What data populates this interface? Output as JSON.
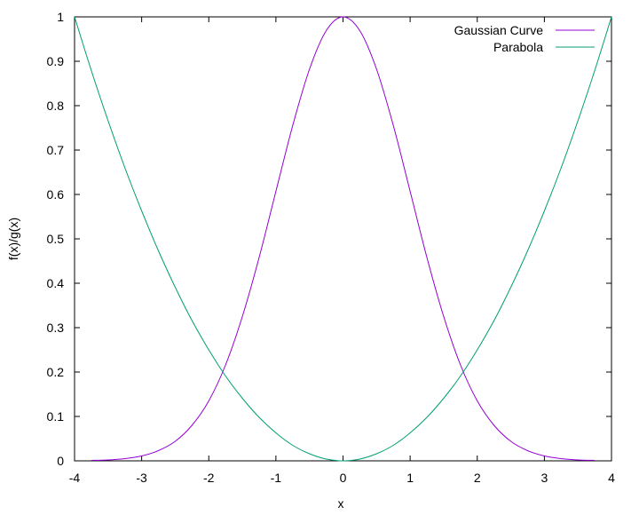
{
  "chart_data": {
    "type": "line",
    "xlabel": "x",
    "ylabel": "f(x)/g(x)",
    "xlim": [
      -4,
      4
    ],
    "ylim": [
      0,
      1
    ],
    "xticks": [
      -4,
      -3,
      -2,
      -1,
      0,
      1,
      2,
      3,
      4
    ],
    "yticks": [
      0,
      0.1,
      0.2,
      0.3,
      0.4,
      0.5,
      0.6,
      0.7,
      0.8,
      0.9,
      1
    ],
    "grid": false,
    "legend_position": "top-right",
    "series": [
      {
        "name": "Gaussian Curve",
        "color": "#9400d3",
        "x": [
          -3.75,
          -3.5,
          -3.25,
          -3.0,
          -2.75,
          -2.5,
          -2.25,
          -2.0,
          -1.75,
          -1.5,
          -1.25,
          -1.0,
          -0.75,
          -0.5,
          -0.25,
          0.0,
          0.25,
          0.5,
          0.75,
          1.0,
          1.25,
          1.5,
          1.75,
          2.0,
          2.25,
          2.5,
          2.75,
          3.0,
          3.25,
          3.5,
          3.75
        ],
        "y": [
          0.001,
          0.002,
          0.005,
          0.011,
          0.023,
          0.044,
          0.08,
          0.135,
          0.216,
          0.325,
          0.458,
          0.607,
          0.755,
          0.882,
          0.969,
          1.0,
          0.969,
          0.882,
          0.755,
          0.607,
          0.458,
          0.325,
          0.216,
          0.135,
          0.08,
          0.044,
          0.023,
          0.011,
          0.005,
          0.002,
          0.001
        ]
      },
      {
        "name": "Parabola",
        "color": "#009e73",
        "x": [
          -4.0,
          -3.75,
          -3.5,
          -3.25,
          -3.0,
          -2.75,
          -2.5,
          -2.25,
          -2.0,
          -1.75,
          -1.5,
          -1.25,
          -1.0,
          -0.75,
          -0.5,
          -0.25,
          0.0,
          0.25,
          0.5,
          0.75,
          1.0,
          1.25,
          1.5,
          1.75,
          2.0,
          2.25,
          2.5,
          2.75,
          3.0,
          3.25,
          3.5,
          3.75,
          4.0
        ],
        "y": [
          1.0,
          0.879,
          0.766,
          0.66,
          0.563,
          0.473,
          0.391,
          0.316,
          0.25,
          0.191,
          0.141,
          0.098,
          0.063,
          0.035,
          0.016,
          0.004,
          0.0,
          0.004,
          0.016,
          0.035,
          0.063,
          0.098,
          0.141,
          0.191,
          0.25,
          0.316,
          0.391,
          0.473,
          0.563,
          0.66,
          0.766,
          0.879,
          1.0
        ]
      }
    ]
  }
}
